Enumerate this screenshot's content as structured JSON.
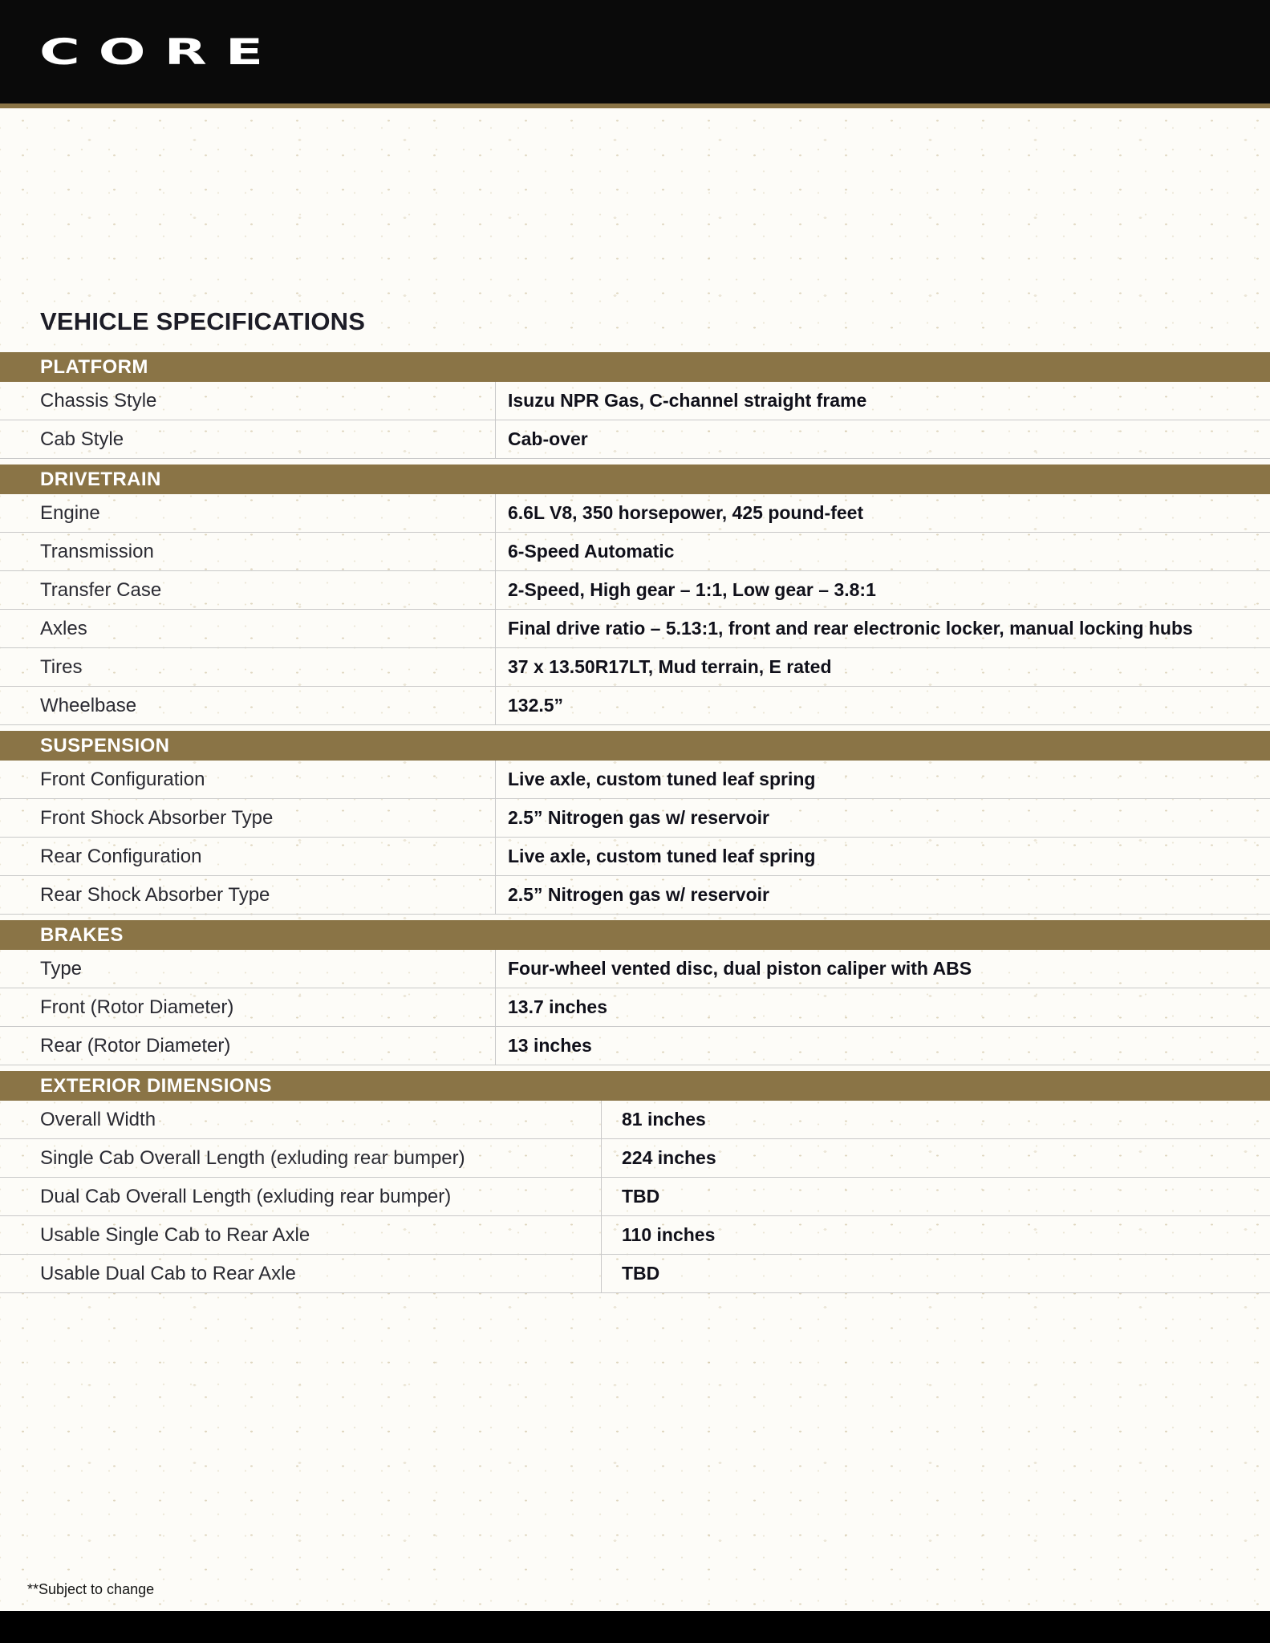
{
  "brand": {
    "logo_text": "CORE"
  },
  "page_title": "VEHICLE SPECIFICATIONS",
  "footnote": "**Subject to change",
  "colors": {
    "gold": "#8a7446",
    "header_bar": "#0a0a0a",
    "footer_bar": "#000000"
  },
  "sections": [
    {
      "title": "PLATFORM",
      "layout": "wide",
      "rows": [
        {
          "label": "Chassis Style",
          "value": "Isuzu NPR Gas, C-channel straight frame"
        },
        {
          "label": "Cab Style",
          "value": "Cab-over"
        }
      ]
    },
    {
      "title": "DRIVETRAIN",
      "layout": "wide",
      "rows": [
        {
          "label": "Engine",
          "value": "6.6L V8, 350 horsepower, 425 pound-feet"
        },
        {
          "label": "Transmission",
          "value": "6-Speed Automatic"
        },
        {
          "label": "Transfer Case",
          "value": "2-Speed, High gear – 1:1, Low gear – 3.8:1"
        },
        {
          "label": "Axles",
          "value": "Final drive ratio – 5.13:1, front and rear electronic locker, manual locking hubs"
        },
        {
          "label": "Tires",
          "value": "37 x 13.50R17LT, Mud terrain, E rated"
        },
        {
          "label": "Wheelbase",
          "value": "132.5”"
        }
      ]
    },
    {
      "title": "SUSPENSION",
      "layout": "wide",
      "rows": [
        {
          "label": "Front Configuration",
          "value": "Live axle, custom tuned leaf spring"
        },
        {
          "label": "Front Shock Absorber Type",
          "value": "2.5” Nitrogen gas w/ reservoir"
        },
        {
          "label": "Rear Configuration",
          "value": "Live axle, custom tuned leaf spring"
        },
        {
          "label": "Rear Shock Absorber Type",
          "value": "2.5” Nitrogen gas w/ reservoir"
        }
      ]
    },
    {
      "title": "BRAKES",
      "layout": "wide",
      "rows": [
        {
          "label": "Type",
          "value": "Four-wheel vented disc, dual piston caliper with ABS"
        },
        {
          "label": "Front (Rotor Diameter)",
          "value": "13.7 inches"
        },
        {
          "label": "Rear (Rotor Diameter)",
          "value": "13 inches"
        }
      ]
    },
    {
      "title": "EXTERIOR DIMENSIONS",
      "layout": "narrow",
      "rows": [
        {
          "label": "Overall Width",
          "value": "81 inches"
        },
        {
          "label": "Single Cab Overall Length (exluding rear bumper)",
          "value": "224 inches"
        },
        {
          "label": "Dual Cab Overall Length (exluding rear bumper)",
          "value": "TBD"
        },
        {
          "label": "Usable Single Cab to Rear Axle",
          "value": "110 inches"
        },
        {
          "label": "Usable Dual Cab to Rear Axle",
          "value": "TBD"
        }
      ]
    }
  ]
}
